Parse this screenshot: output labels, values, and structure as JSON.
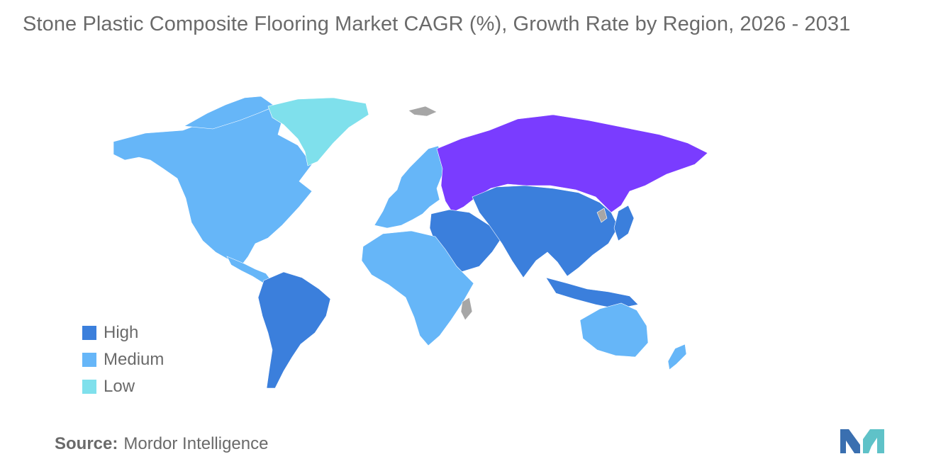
{
  "title": "Stone Plastic Composite Flooring Market  CAGR (%), Growth Rate by Region, 2026 - 2031",
  "legend": {
    "items": [
      {
        "label": "High",
        "color": "#3b7fdc"
      },
      {
        "label": "Medium",
        "color": "#66b6f8"
      },
      {
        "label": "Low",
        "color": "#7fe0ec"
      }
    ]
  },
  "map": {
    "colors": {
      "high": "#3b7fdc",
      "medium": "#66b6f8",
      "low": "#7fe0ec",
      "russia": "#7a3cff",
      "no_data": "#a6a6a6"
    },
    "regions": {
      "north_america": "medium",
      "greenland": "low",
      "south_america": "high",
      "europe": "medium",
      "russia": "russia",
      "africa": "medium",
      "middle_east": "high",
      "asia": "high",
      "oceania": "medium"
    }
  },
  "source": {
    "label": "Source:",
    "value": "Mordor Intelligence"
  },
  "logo": {
    "icon": "mordor-intelligence-logo",
    "colors": [
      "#3a6fb0",
      "#5fc2c8"
    ]
  }
}
